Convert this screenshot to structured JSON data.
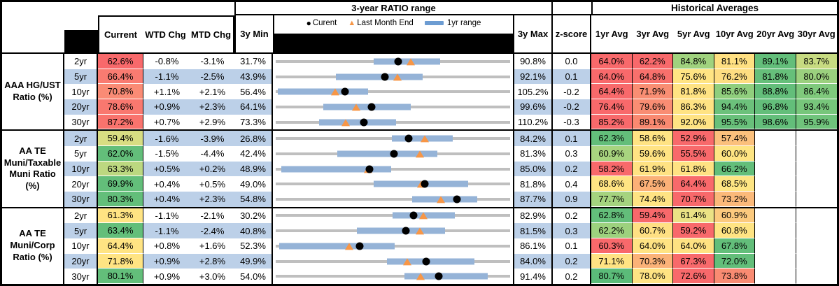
{
  "title_bar": {
    "range_section": "3-year RATIO range",
    "averages_section": "Historical Averages"
  },
  "columns": {
    "current": "Current",
    "wtd": "WTD Chg",
    "mtd": "MTD Chg",
    "min": "3y Min",
    "max": "3y Max",
    "z": "z-score",
    "averages": [
      "1yr Avg",
      "3yr Avg",
      "5yr Avg",
      "10yr Avg",
      "20yr Avg",
      "30yr Avg"
    ]
  },
  "legend": {
    "current_label": "Curent",
    "last_month_label": "Last Month End",
    "range_label": "1yr range"
  },
  "palette": {
    "stripe_blue": "#BCD0E8",
    "track_gray": "#BFBFBF",
    "band_blue": "#95B3D7",
    "legend_bar_blue": "#6C9CD2",
    "marker_black": "#000000",
    "triangle_orange": "#F79646",
    "heat_red": "#F8696B",
    "heat_yellow": "#FFE383",
    "heat_green": "#63BE7A"
  },
  "chart_data": {
    "type": "table+range-chart",
    "groups": [
      {
        "label": "AAA HG/UST Ratio (%)",
        "rows": [
          {
            "tenor": "2yr",
            "current": "62.6%",
            "current_bg": "#F8696B",
            "wtd": "-0.8%",
            "mtd": "-3.1%",
            "min": "31.7%",
            "max": "90.8%",
            "z": "0.0",
            "chart": {
              "min_v": 31.7,
              "max_v": 90.8,
              "current_v": 62.6,
              "last_month_v": 65.7,
              "band_1yr": [
                56.3,
                73.2
              ]
            },
            "averages": [
              {
                "v": "64.0%",
                "bg": "#F8696B"
              },
              {
                "v": "62.2%",
                "bg": "#F8696B"
              },
              {
                "v": "84.8%",
                "bg": "#A0D27E"
              },
              {
                "v": "81.1%",
                "bg": "#FFE082"
              },
              {
                "v": "89.1%",
                "bg": "#63BE7A"
              },
              {
                "v": "83.7%",
                "bg": "#C7DB81"
              }
            ]
          },
          {
            "tenor": "5yr",
            "current": "66.4%",
            "current_bg": "#F97B71",
            "wtd": "-1.1%",
            "mtd": "-2.5%",
            "min": "43.9%",
            "max": "92.1%",
            "z": "0.1",
            "chart": {
              "min_v": 43.9,
              "max_v": 92.1,
              "current_v": 66.4,
              "last_month_v": 68.9,
              "band_1yr": [
                56.2,
                74.2
              ]
            },
            "averages": [
              {
                "v": "64.0%",
                "bg": "#F8696B"
              },
              {
                "v": "64.8%",
                "bg": "#F8706C"
              },
              {
                "v": "75.6%",
                "bg": "#FFE483"
              },
              {
                "v": "76.2%",
                "bg": "#FEDD81"
              },
              {
                "v": "81.8%",
                "bg": "#66BF7A"
              },
              {
                "v": "80.0%",
                "bg": "#9BD07E"
              }
            ]
          },
          {
            "tenor": "10yr",
            "current": "70.8%",
            "current_bg": "#FA8B75",
            "wtd": "+1.1%",
            "mtd": "+2.1%",
            "min": "56.4%",
            "max": "105.2%",
            "z": "-0.2",
            "chart": {
              "min_v": 56.4,
              "max_v": 105.2,
              "current_v": 70.8,
              "last_month_v": 68.7,
              "band_1yr": [
                56.7,
                75.6
              ]
            },
            "averages": [
              {
                "v": "64.4%",
                "bg": "#F8696B"
              },
              {
                "v": "71.9%",
                "bg": "#F98E73"
              },
              {
                "v": "81.8%",
                "bg": "#FFE383"
              },
              {
                "v": "85.6%",
                "bg": "#90CE7D"
              },
              {
                "v": "88.8%",
                "bg": "#63BE7A"
              },
              {
                "v": "86.4%",
                "bg": "#7FC97C"
              }
            ]
          },
          {
            "tenor": "20yr",
            "current": "78.6%",
            "current_bg": "#F9786F",
            "wtd": "+0.9%",
            "mtd": "+2.3%",
            "min": "64.1%",
            "max": "99.6%",
            "z": "-0.2",
            "chart": {
              "min_v": 64.1,
              "max_v": 99.6,
              "current_v": 78.6,
              "last_month_v": 76.3,
              "band_1yr": [
                71.2,
                84.6
              ]
            },
            "averages": [
              {
                "v": "76.4%",
                "bg": "#F8696B"
              },
              {
                "v": "79.6%",
                "bg": "#F98D73"
              },
              {
                "v": "86.3%",
                "bg": "#FFE383"
              },
              {
                "v": "94.4%",
                "bg": "#6CC17B"
              },
              {
                "v": "96.8%",
                "bg": "#63BE7A"
              },
              {
                "v": "93.4%",
                "bg": "#77C67B"
              }
            ]
          },
          {
            "tenor": "30yr",
            "current": "87.2%",
            "current_bg": "#F9736D",
            "wtd": "+0.7%",
            "mtd": "+2.9%",
            "min": "73.3%",
            "max": "110.2%",
            "z": "-0.3",
            "chart": {
              "min_v": 73.3,
              "max_v": 110.2,
              "current_v": 87.2,
              "last_month_v": 84.3,
              "band_1yr": [
                80.1,
                92.2
              ]
            },
            "averages": [
              {
                "v": "85.2%",
                "bg": "#F8696B"
              },
              {
                "v": "89.1%",
                "bg": "#F98970"
              },
              {
                "v": "92.0%",
                "bg": "#FFE383"
              },
              {
                "v": "95.5%",
                "bg": "#68C07A"
              },
              {
                "v": "98.6%",
                "bg": "#63BE7A"
              },
              {
                "v": "95.9%",
                "bg": "#6FC37B"
              }
            ]
          }
        ]
      },
      {
        "label": "AA TE Muni/Taxable Muni Ratio (%)",
        "rows": [
          {
            "tenor": "2yr",
            "current": "59.4%",
            "current_bg": "#D8DD82",
            "wtd": "-1.6%",
            "mtd": "-3.9%",
            "min": "26.8%",
            "max": "84.2%",
            "z": "0.1",
            "chart": {
              "min_v": 26.8,
              "max_v": 84.2,
              "current_v": 59.4,
              "last_month_v": 63.3,
              "band_1yr": [
                55.3,
                70.2
              ]
            },
            "averages": [
              {
                "v": "62.3%",
                "bg": "#63BE7A"
              },
              {
                "v": "58.6%",
                "bg": "#FFE383"
              },
              {
                "v": "52.9%",
                "bg": "#F8696B"
              },
              {
                "v": "57.4%",
                "bg": "#FBC07C"
              },
              {
                "v": "",
                "bg": ""
              },
              {
                "v": "",
                "bg": ""
              }
            ]
          },
          {
            "tenor": "5yr",
            "current": "62.0%",
            "current_bg": "#63BE7A",
            "wtd": "-1.5%",
            "mtd": "-4.4%",
            "min": "42.4%",
            "max": "81.3%",
            "z": "0.3",
            "chart": {
              "min_v": 42.4,
              "max_v": 81.3,
              "current_v": 62.0,
              "last_month_v": 66.4,
              "band_1yr": [
                52.5,
                69.3
              ]
            },
            "averages": [
              {
                "v": "60.9%",
                "bg": "#A8D47F"
              },
              {
                "v": "59.6%",
                "bg": "#FFE383"
              },
              {
                "v": "55.5%",
                "bg": "#F8696B"
              },
              {
                "v": "60.0%",
                "bg": "#FEE583"
              },
              {
                "v": "",
                "bg": ""
              },
              {
                "v": "",
                "bg": ""
              }
            ]
          },
          {
            "tenor": "10yr",
            "current": "63.3%",
            "current_bg": "#BCD880",
            "wtd": "+0.5%",
            "mtd": "+0.2%",
            "min": "48.9%",
            "max": "85.0%",
            "z": "0.2",
            "chart": {
              "min_v": 48.9,
              "max_v": 85.0,
              "current_v": 63.3,
              "last_month_v": 63.1,
              "band_1yr": [
                49.6,
                66.7
              ]
            },
            "averages": [
              {
                "v": "58.2%",
                "bg": "#F8696B"
              },
              {
                "v": "61.9%",
                "bg": "#FFE283"
              },
              {
                "v": "61.8%",
                "bg": "#FFE283"
              },
              {
                "v": "66.2%",
                "bg": "#63BE7A"
              },
              {
                "v": "",
                "bg": ""
              },
              {
                "v": "",
                "bg": ""
              }
            ]
          },
          {
            "tenor": "20yr",
            "current": "69.9%",
            "current_bg": "#63BE7A",
            "wtd": "+0.4%",
            "mtd": "+0.5%",
            "min": "49.0%",
            "max": "81.8%",
            "z": "0.4",
            "chart": {
              "min_v": 49.0,
              "max_v": 81.8,
              "current_v": 69.9,
              "last_month_v": 69.4,
              "band_1yr": [
                62.7,
                76.0
              ]
            },
            "averages": [
              {
                "v": "68.6%",
                "bg": "#FFE483"
              },
              {
                "v": "67.5%",
                "bg": "#FBB077"
              },
              {
                "v": "64.4%",
                "bg": "#F8696B"
              },
              {
                "v": "68.5%",
                "bg": "#FEE583"
              },
              {
                "v": "",
                "bg": ""
              },
              {
                "v": "",
                "bg": ""
              }
            ]
          },
          {
            "tenor": "30yr",
            "current": "80.3%",
            "current_bg": "#63BE7A",
            "wtd": "+0.4%",
            "mtd": "+2.3%",
            "min": "54.8%",
            "max": "87.7%",
            "z": "0.9",
            "chart": {
              "min_v": 54.8,
              "max_v": 87.7,
              "current_v": 80.3,
              "last_month_v": 78.0,
              "band_1yr": [
                74.0,
                83.2
              ]
            },
            "averages": [
              {
                "v": "77.7%",
                "bg": "#A5D37F"
              },
              {
                "v": "74.4%",
                "bg": "#FFE383"
              },
              {
                "v": "70.7%",
                "bg": "#F8696B"
              },
              {
                "v": "73.2%",
                "bg": "#FBB97A"
              },
              {
                "v": "",
                "bg": ""
              },
              {
                "v": "",
                "bg": ""
              }
            ]
          }
        ]
      },
      {
        "label": "AA TE Muni/Corp Ratio (%)",
        "rows": [
          {
            "tenor": "2yr",
            "current": "61.3%",
            "current_bg": "#FFE483",
            "wtd": "-1.1%",
            "mtd": "-2.1%",
            "min": "30.2%",
            "max": "82.9%",
            "z": "0.2",
            "chart": {
              "min_v": 30.2,
              "max_v": 82.9,
              "current_v": 61.3,
              "last_month_v": 63.4,
              "band_1yr": [
                56.4,
                70.5
              ]
            },
            "averages": [
              {
                "v": "62.8%",
                "bg": "#63BE7A"
              },
              {
                "v": "59.4%",
                "bg": "#F8696B"
              },
              {
                "v": "61.4%",
                "bg": "#EBE285"
              },
              {
                "v": "60.9%",
                "bg": "#FCCA7E"
              },
              {
                "v": "",
                "bg": ""
              },
              {
                "v": "",
                "bg": ""
              }
            ]
          },
          {
            "tenor": "5yr",
            "current": "63.4%",
            "current_bg": "#63BE7A",
            "wtd": "-1.1%",
            "mtd": "-2.4%",
            "min": "40.8%",
            "max": "81.5%",
            "z": "0.3",
            "chart": {
              "min_v": 40.8,
              "max_v": 81.5,
              "current_v": 63.4,
              "last_month_v": 65.8,
              "band_1yr": [
                54.8,
                70.3
              ]
            },
            "averages": [
              {
                "v": "62.2%",
                "bg": "#9DD17E"
              },
              {
                "v": "60.7%",
                "bg": "#FFE083"
              },
              {
                "v": "59.2%",
                "bg": "#F8696B"
              },
              {
                "v": "60.8%",
                "bg": "#FFE483"
              },
              {
                "v": "",
                "bg": ""
              },
              {
                "v": "",
                "bg": ""
              }
            ]
          },
          {
            "tenor": "10yr",
            "current": "64.4%",
            "current_bg": "#FFE483",
            "wtd": "+0.8%",
            "mtd": "+1.6%",
            "min": "52.3%",
            "max": "86.1%",
            "z": "0.1",
            "chart": {
              "min_v": 52.3,
              "max_v": 86.1,
              "current_v": 64.4,
              "last_month_v": 62.8,
              "band_1yr": [
                52.7,
                69.5
              ]
            },
            "averages": [
              {
                "v": "60.3%",
                "bg": "#F8696B"
              },
              {
                "v": "64.0%",
                "bg": "#FFE383"
              },
              {
                "v": "64.0%",
                "bg": "#FEE282"
              },
              {
                "v": "67.8%",
                "bg": "#63BE7A"
              },
              {
                "v": "",
                "bg": ""
              },
              {
                "v": "",
                "bg": ""
              }
            ]
          },
          {
            "tenor": "20yr",
            "current": "71.8%",
            "current_bg": "#FFE483",
            "wtd": "+0.9%",
            "mtd": "+2.8%",
            "min": "49.9%",
            "max": "84.0%",
            "z": "0.2",
            "chart": {
              "min_v": 49.9,
              "max_v": 84.0,
              "current_v": 71.8,
              "last_month_v": 69.0,
              "band_1yr": [
                66.1,
                78.9
              ]
            },
            "averages": [
              {
                "v": "71.1%",
                "bg": "#FFE383"
              },
              {
                "v": "70.3%",
                "bg": "#FBB278"
              },
              {
                "v": "67.3%",
                "bg": "#F8696B"
              },
              {
                "v": "72.0%",
                "bg": "#63BE7A"
              },
              {
                "v": "",
                "bg": ""
              },
              {
                "v": "",
                "bg": ""
              }
            ]
          },
          {
            "tenor": "30yr",
            "current": "80.1%",
            "current_bg": "#63BE7A",
            "wtd": "+0.9%",
            "mtd": "+3.0%",
            "min": "54.0%",
            "max": "91.4%",
            "z": "0.2",
            "chart": {
              "min_v": 54.0,
              "max_v": 91.4,
              "current_v": 80.1,
              "last_month_v": 77.1,
              "band_1yr": [
                74.5,
                87.9
              ]
            },
            "averages": [
              {
                "v": "80.7%",
                "bg": "#5BBB79"
              },
              {
                "v": "78.0%",
                "bg": "#FFE383"
              },
              {
                "v": "72.6%",
                "bg": "#F8696B"
              },
              {
                "v": "73.8%",
                "bg": "#F98B72"
              },
              {
                "v": "",
                "bg": ""
              },
              {
                "v": "",
                "bg": ""
              }
            ]
          }
        ]
      }
    ]
  }
}
